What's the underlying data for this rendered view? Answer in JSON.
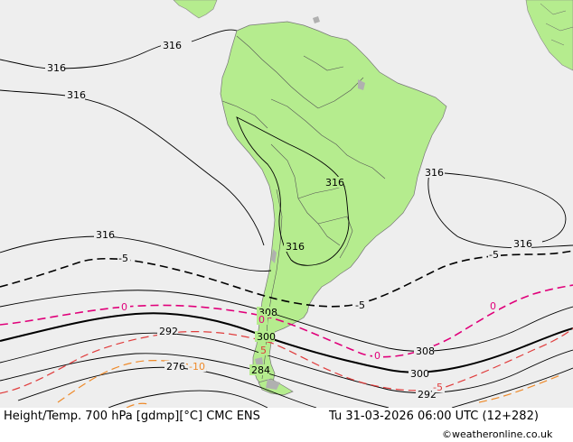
{
  "map": {
    "labels": {
      "h316": "316",
      "h308": "308",
      "h300": "300",
      "h292": "292",
      "h284": "284",
      "h276": "276",
      "t_m5": "-5",
      "t_0": "0",
      "t_5": "5",
      "t_m10": "-10"
    }
  },
  "footer": {
    "title": "Height/Temp. 700 hPa [gdmp][°C] CMC ENS",
    "datetime": "Tu 31-03-2026 06:00 UTC (12+282)",
    "credit": "©weatheronline.co.uk"
  },
  "colors": {
    "ocean": "#eeeeee",
    "land": "#b5ec8e",
    "lake": "#b0b0b0",
    "contour": "#000000",
    "temp_zero": "#e0007a",
    "temp_neg5": "#e03c3c",
    "temp_neg10": "#ee8a2a"
  }
}
